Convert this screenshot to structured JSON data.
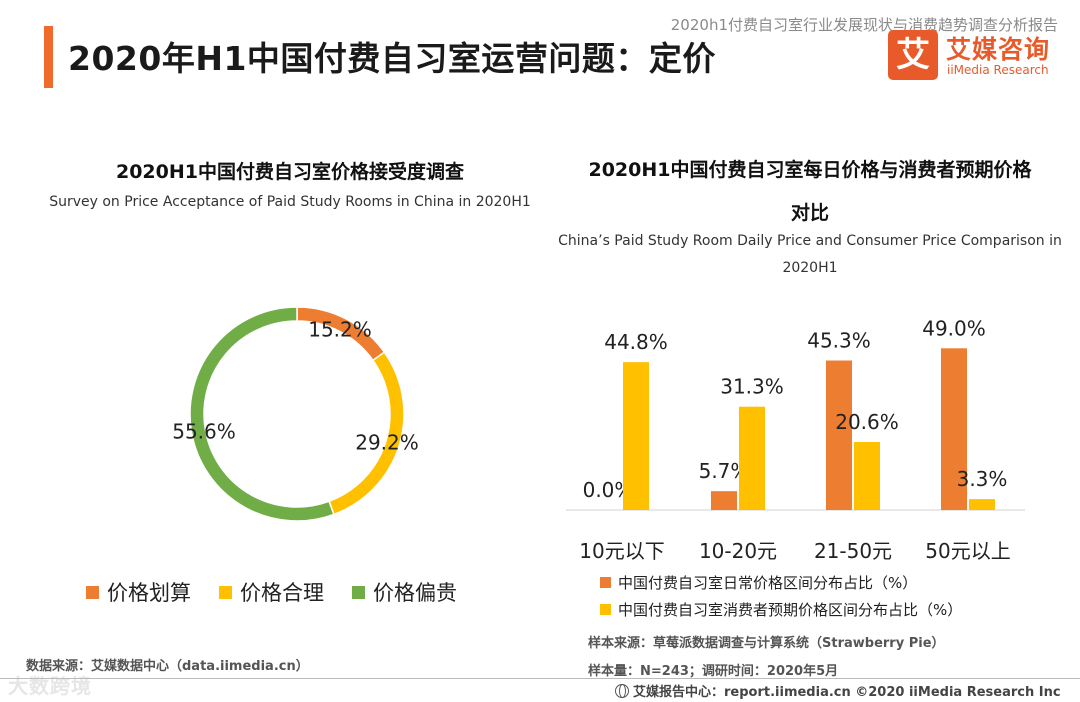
{
  "header": {
    "report_name": "2020h1付费自习室行业发展现状与消费趋势调查分析报告",
    "page_title": "2020年H1中国付费自习室运营问题：定价"
  },
  "logo": {
    "mark": "艾",
    "name_cn": "艾媒咨询",
    "name_en": "iiMedia Research"
  },
  "colors": {
    "accent": "#f06a2c",
    "orange": "#ed7d31",
    "yellow": "#ffc000",
    "green": "#70ad47"
  },
  "left_chart": {
    "title": "2020H1中国付费自习室价格接受度调查",
    "subtitle": "Survey on Price Acceptance of Paid Study Rooms in China in 2020H1",
    "legend": [
      "价格划算",
      "价格合理",
      "价格偏贵"
    ]
  },
  "right_chart": {
    "title_line1": "2020H1中国付费自习室每日价格与消费者预期价格",
    "title_line2": "对比",
    "subtitle_line1": "China’s Paid Study Room Daily Price and Consumer Price Comparison in",
    "subtitle_line2": "2020H1",
    "legend": [
      "中国付费自习室日常价格区间分布占比（%）",
      "中国付费自习室消费者预期价格区间分布占比（%）"
    ]
  },
  "chart_data": [
    {
      "type": "pie",
      "variant": "donut",
      "title": "2020H1中国付费自习室价格接受度调查",
      "categories": [
        "价格划算",
        "价格合理",
        "价格偏贵"
      ],
      "values": [
        15.2,
        29.2,
        55.6
      ],
      "labels": [
        "15.2%",
        "29.2%",
        "55.6%"
      ],
      "colors": [
        "#ed7d31",
        "#ffc000",
        "#70ad47"
      ],
      "legend_position": "bottom"
    },
    {
      "type": "bar",
      "title": "2020H1中国付费自习室每日价格与消费者预期价格对比",
      "categories": [
        "10元以下",
        "10-20元",
        "21-50元",
        "50元以上"
      ],
      "series": [
        {
          "name": "中国付费自习室日常价格区间分布占比（%）",
          "values": [
            0.0,
            5.7,
            45.3,
            49.0
          ],
          "labels": [
            "0.0%",
            "5.7%",
            "45.3%",
            "49.0%"
          ],
          "color": "#ed7d31"
        },
        {
          "name": "中国付费自习室消费者预期价格区间分布占比（%）",
          "values": [
            44.8,
            31.3,
            20.6,
            3.3
          ],
          "labels": [
            "44.8%",
            "31.3%",
            "20.6%",
            "3.3%"
          ],
          "color": "#ffc000"
        }
      ],
      "ylim": [
        0,
        50
      ],
      "legend_position": "bottom"
    }
  ],
  "notes": {
    "data_source_left": "数据来源：艾媒数据中心（data.iimedia.cn）",
    "sample_source": "样本来源：草莓派数据调查与计算系统（Strawberry Pie）",
    "sample_size": "样本量：N=243；调研时间：2020年5月"
  },
  "footer": {
    "report_center": "艾媒报告中心：report.iimedia.cn ©2020 iiMedia Research Inc",
    "watermark": "大数跨境"
  }
}
